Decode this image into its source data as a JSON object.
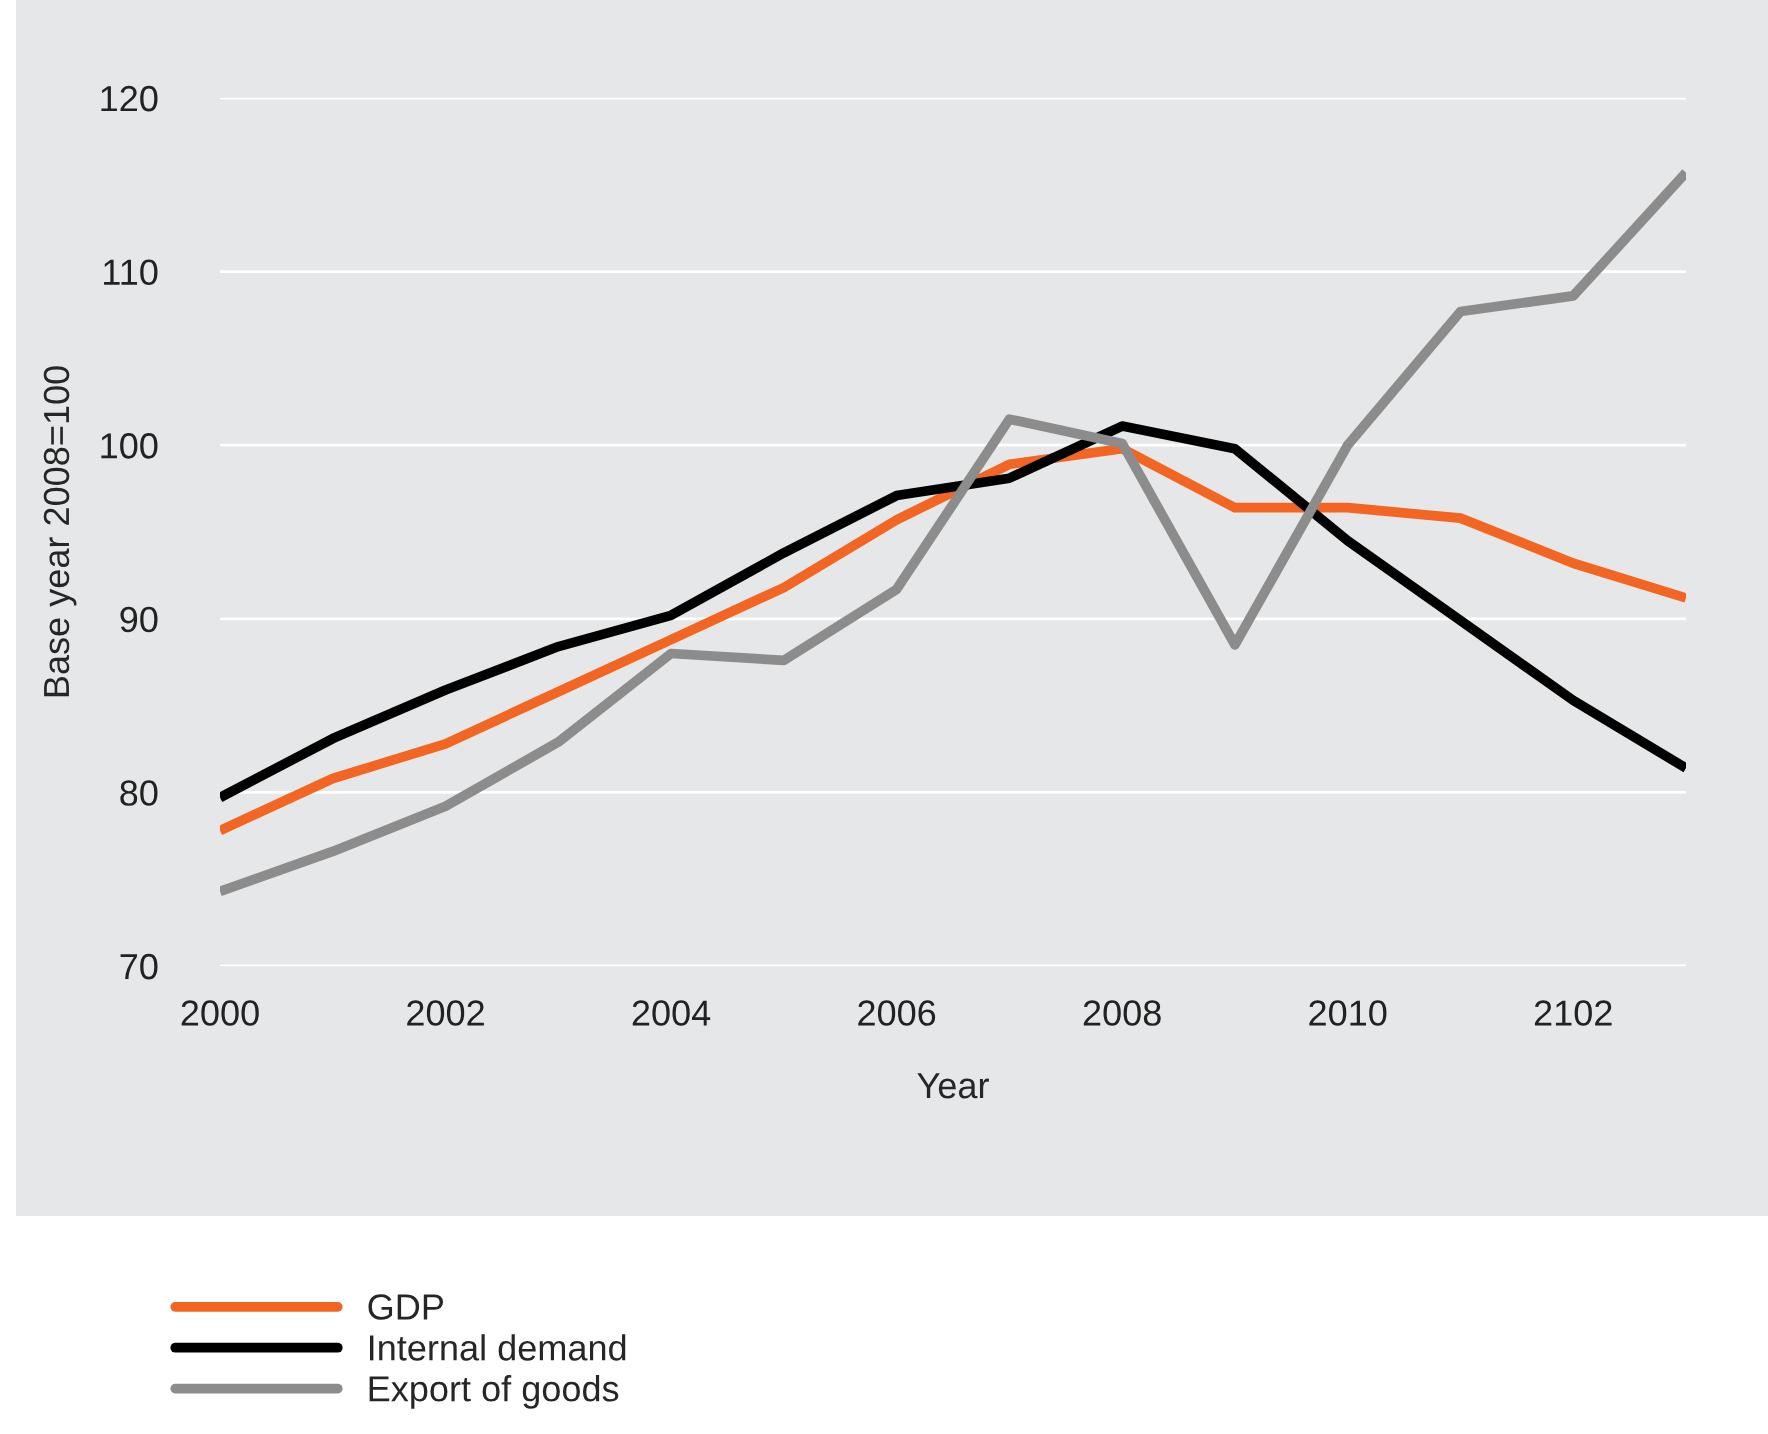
{
  "chart_data": {
    "type": "line",
    "xlabel": "Year",
    "ylabel": "Base year 2008=100",
    "categories": [
      "2000",
      null,
      "2002",
      null,
      "2004",
      null,
      "2006",
      null,
      "2008",
      null,
      "2010",
      null,
      "2102",
      null
    ],
    "series": [
      {
        "name": "GDP",
        "color": "#f26522",
        "values": [
          77.8,
          80.8,
          82.8,
          85.8,
          88.8,
          91.8,
          95.7,
          98.9,
          99.8,
          96.4,
          96.4,
          95.8,
          93.2,
          91.2
        ]
      },
      {
        "name": "Internal demand",
        "color": "#000000",
        "values": [
          79.7,
          83.1,
          85.9,
          88.4,
          90.2,
          93.8,
          97.1,
          98.1,
          101.1,
          99.8,
          94.5,
          89.9,
          85.3,
          81.4
        ]
      },
      {
        "name": "Export of goods",
        "color": "#8c8c8c",
        "values": [
          74.3,
          76.6,
          79.2,
          82.9,
          88.0,
          87.6,
          91.7,
          101.5,
          100.1,
          88.5,
          100.0,
          107.7,
          108.6,
          115.7
        ]
      }
    ],
    "ylim": [
      70,
      120
    ],
    "yticks": [
      70,
      80,
      90,
      100,
      110,
      120
    ],
    "grid": "y",
    "legend": "bottom left",
    "line_style": "solid",
    "marker": "none"
  }
}
